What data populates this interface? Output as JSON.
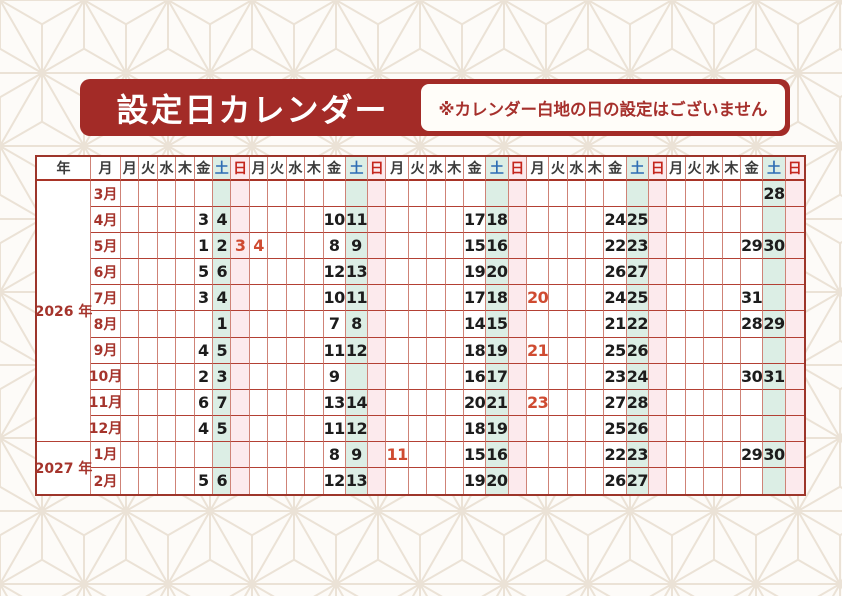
{
  "banner": {
    "title": "設定日カレンダー",
    "note": "※カレンダー白地の日の設定はございません"
  },
  "table": {
    "corner_year": "年",
    "corner_month": "月",
    "weekdays": [
      "月",
      "火",
      "水",
      "木",
      "金",
      "土",
      "日"
    ],
    "weeks": 5,
    "years": [
      {
        "label": "2026 年",
        "row_span": 10
      },
      {
        "label": "2027 年",
        "row_span": 2
      }
    ],
    "rows": [
      {
        "month": "3月",
        "cells": [
          {
            "col": 33,
            "d": "28"
          }
        ]
      },
      {
        "month": "4月",
        "cells": [
          {
            "col": 4,
            "d": "3"
          },
          {
            "col": 5,
            "d": "4"
          },
          {
            "col": 11,
            "d": "10"
          },
          {
            "col": 12,
            "d": "11"
          },
          {
            "col": 18,
            "d": "17"
          },
          {
            "col": 19,
            "d": "18"
          },
          {
            "col": 25,
            "d": "24"
          },
          {
            "col": 26,
            "d": "25"
          }
        ]
      },
      {
        "month": "5月",
        "cells": [
          {
            "col": 4,
            "d": "1"
          },
          {
            "col": 5,
            "d": "2"
          },
          {
            "col": 6,
            "d": "3",
            "holiday": true
          },
          {
            "col": 7,
            "d": "4",
            "holiday": true
          },
          {
            "col": 11,
            "d": "8"
          },
          {
            "col": 12,
            "d": "9"
          },
          {
            "col": 18,
            "d": "15"
          },
          {
            "col": 19,
            "d": "16"
          },
          {
            "col": 25,
            "d": "22"
          },
          {
            "col": 26,
            "d": "23"
          },
          {
            "col": 32,
            "d": "29"
          },
          {
            "col": 33,
            "d": "30"
          }
        ]
      },
      {
        "month": "6月",
        "cells": [
          {
            "col": 4,
            "d": "5"
          },
          {
            "col": 5,
            "d": "6"
          },
          {
            "col": 11,
            "d": "12"
          },
          {
            "col": 12,
            "d": "13"
          },
          {
            "col": 18,
            "d": "19"
          },
          {
            "col": 19,
            "d": "20"
          },
          {
            "col": 25,
            "d": "26"
          },
          {
            "col": 26,
            "d": "27"
          }
        ]
      },
      {
        "month": "7月",
        "cells": [
          {
            "col": 4,
            "d": "3"
          },
          {
            "col": 5,
            "d": "4"
          },
          {
            "col": 11,
            "d": "10"
          },
          {
            "col": 12,
            "d": "11"
          },
          {
            "col": 18,
            "d": "17"
          },
          {
            "col": 19,
            "d": "18"
          },
          {
            "col": 21,
            "d": "20",
            "holiday": true
          },
          {
            "col": 25,
            "d": "24"
          },
          {
            "col": 26,
            "d": "25"
          },
          {
            "col": 32,
            "d": "31"
          }
        ]
      },
      {
        "month": "8月",
        "cells": [
          {
            "col": 5,
            "d": "1"
          },
          {
            "col": 11,
            "d": "7"
          },
          {
            "col": 12,
            "d": "8"
          },
          {
            "col": 18,
            "d": "14"
          },
          {
            "col": 19,
            "d": "15"
          },
          {
            "col": 25,
            "d": "21"
          },
          {
            "col": 26,
            "d": "22"
          },
          {
            "col": 32,
            "d": "28"
          },
          {
            "col": 33,
            "d": "29"
          }
        ]
      },
      {
        "month": "9月",
        "cells": [
          {
            "col": 4,
            "d": "4"
          },
          {
            "col": 5,
            "d": "5"
          },
          {
            "col": 11,
            "d": "11"
          },
          {
            "col": 12,
            "d": "12"
          },
          {
            "col": 18,
            "d": "18"
          },
          {
            "col": 19,
            "d": "19"
          },
          {
            "col": 21,
            "d": "21",
            "holiday": true
          },
          {
            "col": 25,
            "d": "25"
          },
          {
            "col": 26,
            "d": "26"
          }
        ]
      },
      {
        "month": "10月",
        "cells": [
          {
            "col": 4,
            "d": "2"
          },
          {
            "col": 5,
            "d": "3"
          },
          {
            "col": 11,
            "d": "9"
          },
          {
            "col": 18,
            "d": "16"
          },
          {
            "col": 19,
            "d": "17"
          },
          {
            "col": 25,
            "d": "23"
          },
          {
            "col": 26,
            "d": "24"
          },
          {
            "col": 32,
            "d": "30"
          },
          {
            "col": 33,
            "d": "31"
          }
        ]
      },
      {
        "month": "11月",
        "cells": [
          {
            "col": 4,
            "d": "6"
          },
          {
            "col": 5,
            "d": "7"
          },
          {
            "col": 11,
            "d": "13"
          },
          {
            "col": 12,
            "d": "14"
          },
          {
            "col": 18,
            "d": "20"
          },
          {
            "col": 19,
            "d": "21"
          },
          {
            "col": 21,
            "d": "23",
            "holiday": true
          },
          {
            "col": 25,
            "d": "27"
          },
          {
            "col": 26,
            "d": "28"
          }
        ]
      },
      {
        "month": "12月",
        "cells": [
          {
            "col": 4,
            "d": "4"
          },
          {
            "col": 5,
            "d": "5"
          },
          {
            "col": 11,
            "d": "11"
          },
          {
            "col": 12,
            "d": "12"
          },
          {
            "col": 18,
            "d": "18"
          },
          {
            "col": 19,
            "d": "19"
          },
          {
            "col": 25,
            "d": "25"
          },
          {
            "col": 26,
            "d": "26"
          }
        ]
      },
      {
        "month": "1月",
        "cells": [
          {
            "col": 11,
            "d": "8"
          },
          {
            "col": 12,
            "d": "9"
          },
          {
            "col": 14,
            "d": "11",
            "holiday": true
          },
          {
            "col": 18,
            "d": "15"
          },
          {
            "col": 19,
            "d": "16"
          },
          {
            "col": 25,
            "d": "22"
          },
          {
            "col": 26,
            "d": "23"
          },
          {
            "col": 32,
            "d": "29"
          },
          {
            "col": 33,
            "d": "30"
          }
        ]
      },
      {
        "month": "2月",
        "cells": [
          {
            "col": 4,
            "d": "5"
          },
          {
            "col": 5,
            "d": "6"
          },
          {
            "col": 11,
            "d": "12"
          },
          {
            "col": 12,
            "d": "13"
          },
          {
            "col": 18,
            "d": "19"
          },
          {
            "col": 19,
            "d": "20"
          },
          {
            "col": 25,
            "d": "26"
          },
          {
            "col": 26,
            "d": "27"
          }
        ]
      }
    ]
  },
  "colors": {
    "banner_red": "#a32b27",
    "saturday_band": "#dceee5",
    "sunday_band": "#fceaed",
    "saturday_header_text": "#2f6eb4",
    "sunday_header_text": "#c4261d",
    "holiday_number": "#cf4b31",
    "month_label": "#a5342c",
    "grid_line_light": "#cf8377",
    "grid_line_dark": "#b34034"
  }
}
